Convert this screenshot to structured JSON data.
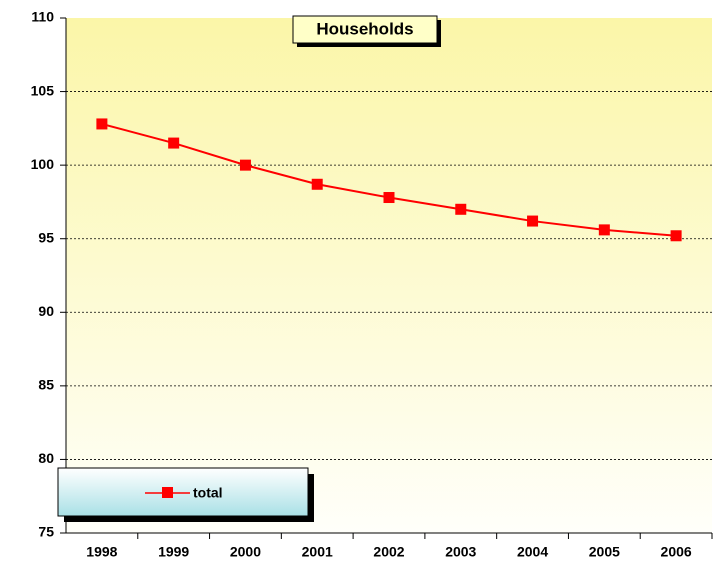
{
  "chart_data": {
    "type": "line",
    "title": "Households",
    "categories": [
      "1998",
      "1999",
      "2000",
      "2001",
      "2002",
      "2003",
      "2004",
      "2005",
      "2006"
    ],
    "series": [
      {
        "name": "total",
        "color": "#ff0000",
        "values": [
          102.8,
          101.5,
          100.0,
          98.7,
          97.8,
          97.0,
          96.2,
          95.6,
          95.2
        ]
      }
    ],
    "ylim": [
      75,
      110
    ],
    "yticks": [
      75,
      80,
      85,
      90,
      95,
      100,
      105,
      110
    ],
    "grid": true,
    "legend": "lower left"
  }
}
